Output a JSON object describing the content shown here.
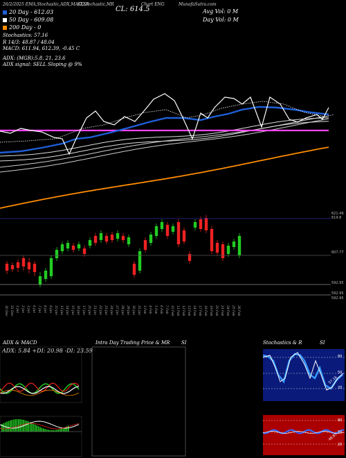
{
  "header": {
    "date": "26/2/2025",
    "indicators": "EMA,Stochastic,ADX,MACD,R",
    "si_label": "SI,Stochastic,MR",
    "title": "CL: 614.5",
    "chart_label": "Chart ENG",
    "brand": "MunafaSutra.com"
  },
  "moving_averages": [
    {
      "label": "20  Day  -  612.03",
      "color": "#1f5fd8"
    },
    {
      "label": "50  Day  -  609.08",
      "color": "#ffffff"
    },
    {
      "label": "200  Day  -  0",
      "color": "#ff8c00"
    }
  ],
  "volumes": {
    "avg": "Avg Vol: 0   M",
    "day": "Day Vol: 0   M"
  },
  "indicators": {
    "stochastics": "Stochastics: 57.16",
    "r": "R                    14/3:  48.87 / 48.04",
    "macd": "MACD:  611.94,  612.39,  -0.45  C",
    "adx": "ADX:                         (MGR):5.8,  21,  23.6",
    "adx_signal": "ADX  signal: SELL  Sloping @ 9%"
  },
  "price_axis": {
    "upper_top": "621.49",
    "upper_bot": "619.8",
    "mid": "607.77",
    "low1": "592.95",
    "low2": "592.95",
    "low3": "592.95"
  },
  "dates": [
    "30 Dec",
    "31 Dec",
    "1 Jan",
    "2 Jan",
    "3 Jan",
    "6 Jan",
    "7 Jan",
    "8 Jan",
    "9 Jan",
    "10 Jan",
    "13 Jan",
    "14 Jan",
    "15 Jan",
    "16 Jan",
    "17 Jan",
    "20 Jan",
    "21 Jan",
    "22 Jan",
    "23 Jan",
    "24 Jan",
    "27 Jan",
    "28 Jan",
    "29 Jan",
    "30 Jan",
    "31 Jan",
    "3 Feb",
    "4 Feb",
    "5 Feb",
    "6 Feb",
    "7 Feb",
    "10 Feb",
    "11 Feb",
    "12 Feb",
    "13 Feb",
    "14 Feb",
    "17 Feb",
    "18 Feb",
    "19 Feb",
    "20 Feb",
    "21 Feb",
    "24 Feb",
    "25 Feb",
    "26 Feb"
  ],
  "panels": {
    "adx_title": "ADX  & MACD",
    "adx_values": "ADX: 5.84   +DI: 20.98   -DI: 23.59",
    "intraday_title": "Intra  Day  Trading Price  & MR",
    "intraday_si": "SI",
    "stoch_title": "Stochastics & R",
    "stoch_si": "SI",
    "stoch_axis": [
      "80",
      "50",
      "20"
    ],
    "stoch_reading": "57.16",
    "mr_axis": [
      "80",
      "50",
      "20"
    ],
    "mr_reading": "48.87"
  },
  "colors": {
    "ema20": "#1f5fd8",
    "ema200": "#ff8c00",
    "magenta": "#ff44ff",
    "up": "#22cc22",
    "down": "#ee2222",
    "stoch_bg": "#0a1a7a",
    "mr_bg": "#aa0000"
  }
}
